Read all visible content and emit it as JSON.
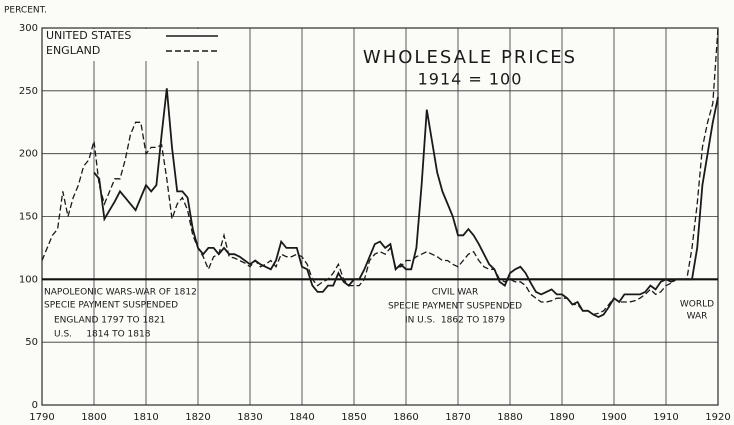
{
  "chart_data": {
    "type": "line",
    "title": "WHOLESALE PRICES",
    "subtitle": "1914 = 100",
    "y_label": "PERCENT.",
    "x": [
      1790,
      1791,
      1792,
      1793,
      1794,
      1795,
      1796,
      1797,
      1798,
      1799,
      1800,
      1801,
      1802,
      1803,
      1804,
      1805,
      1806,
      1807,
      1808,
      1809,
      1810,
      1811,
      1812,
      1813,
      1814,
      1815,
      1816,
      1817,
      1818,
      1819,
      1820,
      1821,
      1822,
      1823,
      1824,
      1825,
      1826,
      1827,
      1828,
      1829,
      1830,
      1831,
      1832,
      1833,
      1834,
      1835,
      1836,
      1837,
      1838,
      1839,
      1840,
      1841,
      1842,
      1843,
      1844,
      1845,
      1846,
      1847,
      1848,
      1849,
      1850,
      1851,
      1852,
      1853,
      1854,
      1855,
      1856,
      1857,
      1858,
      1859,
      1860,
      1861,
      1862,
      1863,
      1864,
      1865,
      1866,
      1867,
      1868,
      1869,
      1870,
      1871,
      1872,
      1873,
      1874,
      1875,
      1876,
      1877,
      1878,
      1879,
      1880,
      1881,
      1882,
      1883,
      1884,
      1885,
      1886,
      1887,
      1888,
      1889,
      1890,
      1891,
      1892,
      1893,
      1894,
      1895,
      1896,
      1897,
      1898,
      1899,
      1900,
      1901,
      1902,
      1903,
      1904,
      1905,
      1906,
      1907,
      1908,
      1909,
      1910,
      1911,
      1912,
      1913,
      1914,
      1915,
      1916,
      1917,
      1918,
      1919,
      1920
    ],
    "series": [
      {
        "name": "UNITED STATES",
        "color": "#1a1a1a",
        "dash": "solid",
        "values": [
          null,
          null,
          null,
          null,
          null,
          null,
          null,
          null,
          null,
          null,
          185,
          180,
          148,
          155,
          162,
          170,
          165,
          160,
          155,
          165,
          175,
          170,
          175,
          215,
          252,
          205,
          170,
          170,
          165,
          140,
          125,
          120,
          125,
          125,
          120,
          125,
          120,
          120,
          118,
          115,
          112,
          115,
          112,
          110,
          108,
          115,
          130,
          125,
          125,
          125,
          110,
          108,
          95,
          90,
          90,
          95,
          95,
          105,
          98,
          95,
          100,
          100,
          108,
          118,
          128,
          130,
          125,
          128,
          108,
          112,
          108,
          108,
          125,
          175,
          235,
          210,
          185,
          170,
          160,
          150,
          135,
          135,
          140,
          135,
          128,
          120,
          112,
          108,
          98,
          95,
          105,
          108,
          110,
          105,
          97,
          90,
          88,
          90,
          92,
          88,
          88,
          85,
          80,
          82,
          75,
          75,
          72,
          70,
          72,
          78,
          85,
          82,
          88,
          88,
          88,
          88,
          90,
          95,
          92,
          98,
          100,
          98,
          100,
          100,
          100,
          100,
          125,
          175,
          200,
          225,
          245
        ]
      },
      {
        "name": "ENGLAND",
        "color": "#1a1a1a",
        "dash": "dashed",
        "values": [
          115,
          125,
          135,
          140,
          170,
          150,
          165,
          175,
          190,
          195,
          210,
          175,
          160,
          170,
          180,
          180,
          195,
          215,
          225,
          225,
          200,
          205,
          205,
          207,
          180,
          148,
          160,
          165,
          155,
          135,
          125,
          118,
          108,
          118,
          120,
          135,
          118,
          117,
          115,
          113,
          110,
          115,
          110,
          112,
          115,
          110,
          120,
          118,
          118,
          120,
          118,
          112,
          100,
          95,
          98,
          100,
          105,
          112,
          100,
          95,
          95,
          95,
          100,
          115,
          120,
          122,
          120,
          125,
          110,
          110,
          115,
          115,
          118,
          120,
          122,
          120,
          118,
          115,
          115,
          112,
          110,
          115,
          120,
          122,
          115,
          110,
          108,
          108,
          100,
          98,
          100,
          98,
          98,
          95,
          88,
          85,
          82,
          82,
          83,
          85,
          85,
          85,
          80,
          80,
          75,
          75,
          72,
          73,
          75,
          80,
          85,
          82,
          82,
          82,
          83,
          85,
          88,
          92,
          88,
          90,
          95,
          97,
          100,
          100,
          100,
          125,
          160,
          205,
          225,
          240,
          300
        ]
      }
    ],
    "xlim": [
      1790,
      1920
    ],
    "xticks": [
      1790,
      1800,
      1810,
      1820,
      1830,
      1840,
      1850,
      1860,
      1870,
      1880,
      1890,
      1900,
      1910,
      1920
    ],
    "ylim": [
      0,
      300
    ],
    "yticks": [
      0,
      50,
      100,
      150,
      200,
      250,
      300
    ],
    "baseline": 100,
    "grid": true,
    "legend": "upper left",
    "annotations": [
      "NAPOLEONIC WARS-WAR OF 1812",
      "SPECIE PAYMENT SUSPENDED",
      "ENGLAND 1797 TO 1821",
      "U.S.     1814 TO 1818",
      "CIVIL WAR",
      "SPECIE PAYMENT SUSPENDED",
      "IN U.S.  1862 TO 1879",
      "WORLD",
      "WAR"
    ]
  }
}
